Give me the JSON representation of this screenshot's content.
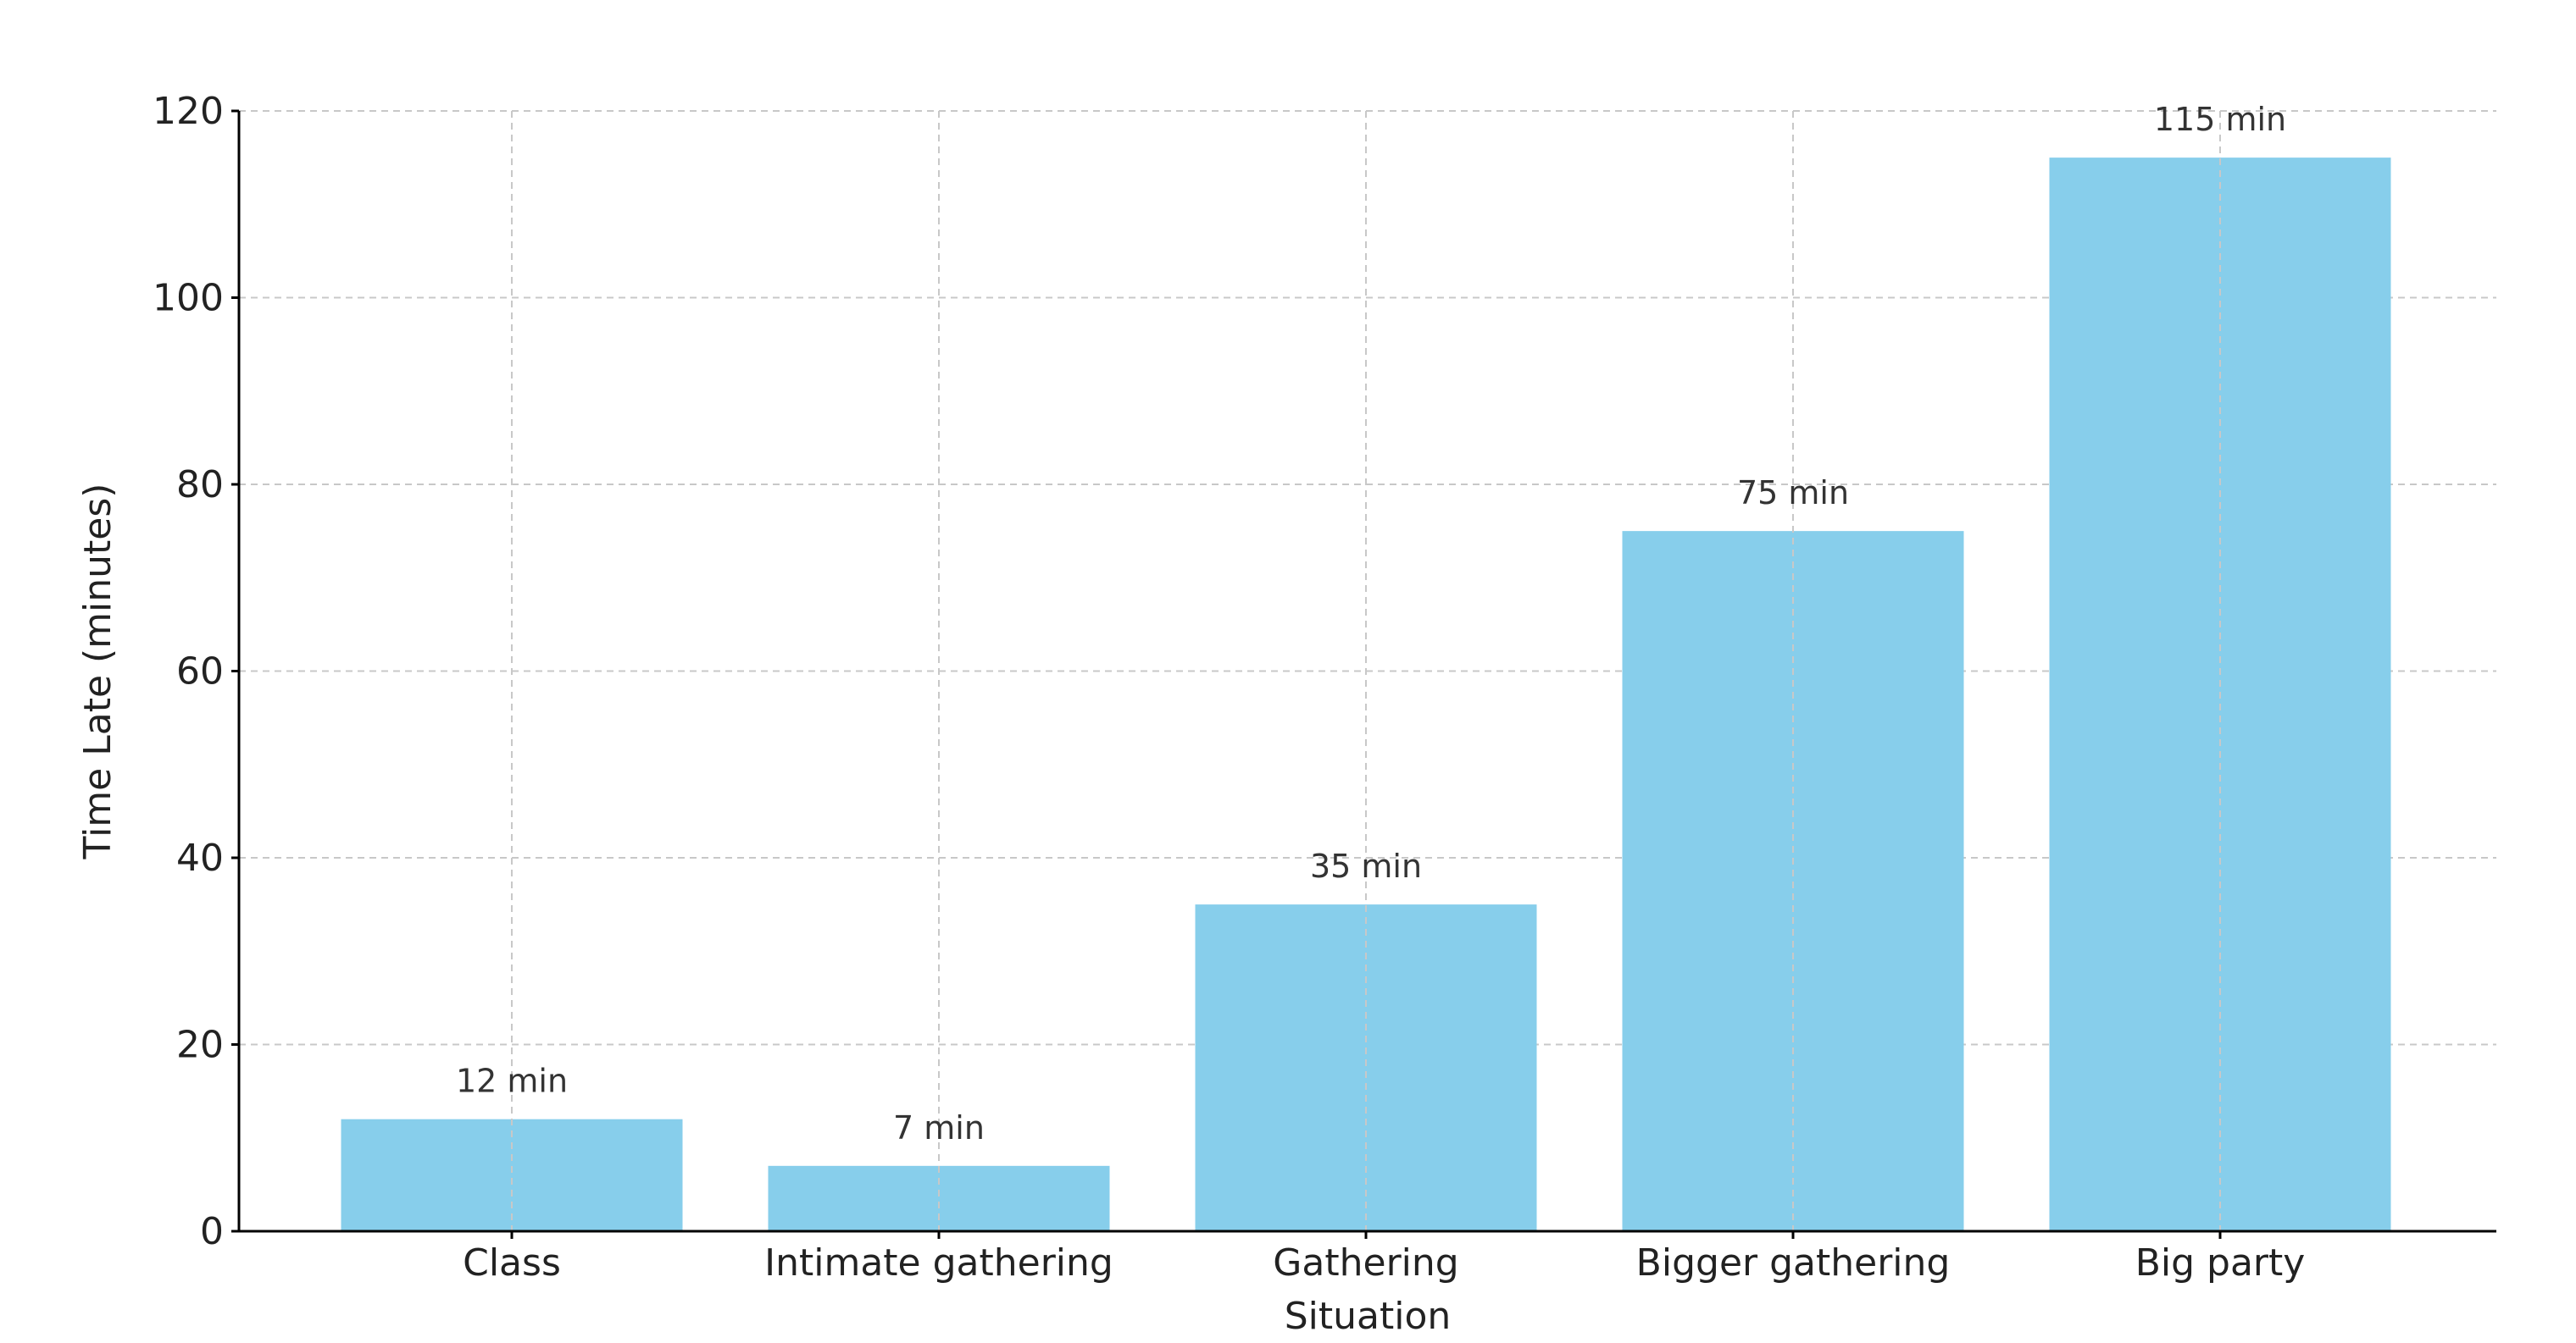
{
  "chart_data": {
    "type": "bar",
    "title": "",
    "xlabel": "Situation",
    "ylabel": "Time Late (minutes)",
    "categories": [
      "Class",
      "Intimate gathering",
      "Gathering",
      "Bigger gathering",
      "Big party"
    ],
    "values": [
      12,
      7,
      35,
      75,
      115
    ],
    "data_labels": [
      "12 min",
      "7 min",
      "35 min",
      "75 min",
      "115 min"
    ],
    "ylim": [
      0,
      120
    ],
    "yticks": [
      0,
      20,
      40,
      60,
      80,
      100,
      120
    ],
    "grid": true,
    "grid_style": "dashed",
    "legend": "none",
    "bar_color": "#87CEEB",
    "grid_color": "#c8c8c8",
    "axis_color": "#000000"
  }
}
